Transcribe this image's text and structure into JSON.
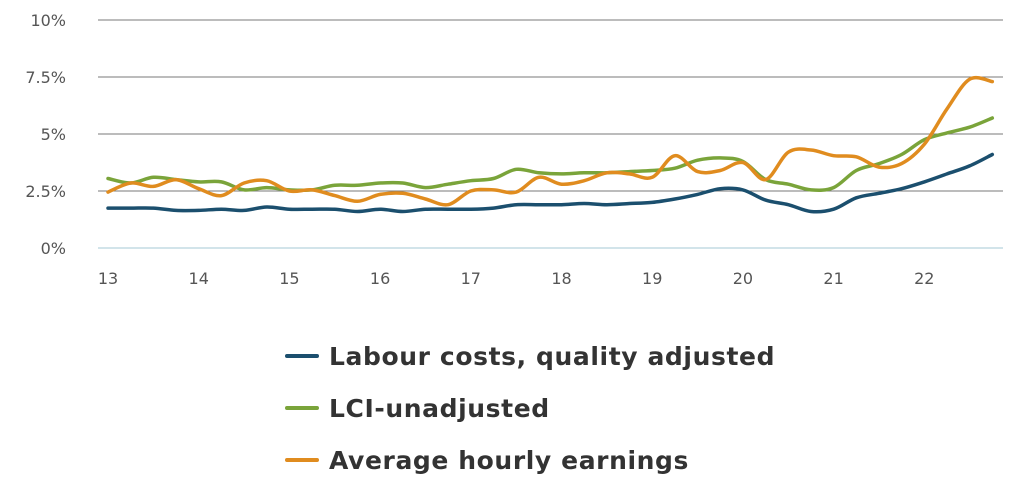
{
  "chart_data": {
    "type": "line",
    "title": "",
    "xlabel": "",
    "ylabel": "",
    "xlim": [
      13,
      22.8
    ],
    "ylim": [
      0,
      10
    ],
    "x_ticks": [
      13,
      14,
      15,
      16,
      17,
      18,
      19,
      20,
      21,
      22
    ],
    "x_tick_labels": [
      "13",
      "14",
      "15",
      "16",
      "17",
      "18",
      "19",
      "20",
      "21",
      "22"
    ],
    "y_ticks": [
      0,
      2.5,
      5,
      7.5,
      10
    ],
    "y_tick_labels": [
      "0%",
      "2.5%",
      "5%",
      "7.5%",
      "10%"
    ],
    "grid": "horizontal",
    "legend_position": "bottom",
    "x": [
      13.0,
      13.25,
      13.5,
      13.75,
      14.0,
      14.25,
      14.5,
      14.75,
      15.0,
      15.25,
      15.5,
      15.75,
      16.0,
      16.25,
      16.5,
      16.75,
      17.0,
      17.25,
      17.5,
      17.75,
      18.0,
      18.25,
      18.5,
      18.75,
      19.0,
      19.25,
      19.5,
      19.75,
      20.0,
      20.25,
      20.5,
      20.75,
      21.0,
      21.25,
      21.5,
      21.75,
      22.0,
      22.25,
      22.5,
      22.75
    ],
    "series": [
      {
        "name": "Labour costs, quality adjusted",
        "color": "#1b4f6e",
        "values": [
          1.75,
          1.75,
          1.75,
          1.65,
          1.65,
          1.7,
          1.65,
          1.8,
          1.7,
          1.7,
          1.7,
          1.6,
          1.7,
          1.6,
          1.7,
          1.7,
          1.7,
          1.75,
          1.9,
          1.9,
          1.9,
          1.95,
          1.9,
          1.95,
          2.0,
          2.15,
          2.35,
          2.6,
          2.55,
          2.1,
          1.9,
          1.6,
          1.7,
          2.2,
          2.4,
          2.6,
          2.9,
          3.25,
          3.6,
          4.1
        ]
      },
      {
        "name": "LCI-unadjusted",
        "color": "#7aa43a",
        "values": [
          3.05,
          2.85,
          3.1,
          3.0,
          2.9,
          2.9,
          2.55,
          2.65,
          2.55,
          2.55,
          2.75,
          2.75,
          2.85,
          2.85,
          2.65,
          2.8,
          2.95,
          3.05,
          3.45,
          3.3,
          3.25,
          3.3,
          3.3,
          3.35,
          3.4,
          3.5,
          3.85,
          3.95,
          3.8,
          3.0,
          2.8,
          2.55,
          2.65,
          3.4,
          3.7,
          4.1,
          4.75,
          5.05,
          5.3,
          5.7
        ]
      },
      {
        "name": "Average hourly earnings",
        "color": "#e08c1f",
        "values": [
          2.45,
          2.85,
          2.7,
          3.0,
          2.6,
          2.3,
          2.85,
          2.95,
          2.5,
          2.55,
          2.3,
          2.05,
          2.35,
          2.4,
          2.15,
          1.9,
          2.5,
          2.55,
          2.45,
          3.1,
          2.8,
          2.95,
          3.3,
          3.25,
          3.1,
          4.05,
          3.35,
          3.4,
          3.75,
          3.0,
          4.2,
          4.3,
          4.05,
          4.0,
          3.55,
          3.7,
          4.55,
          6.1,
          7.4,
          7.3
        ]
      }
    ]
  }
}
